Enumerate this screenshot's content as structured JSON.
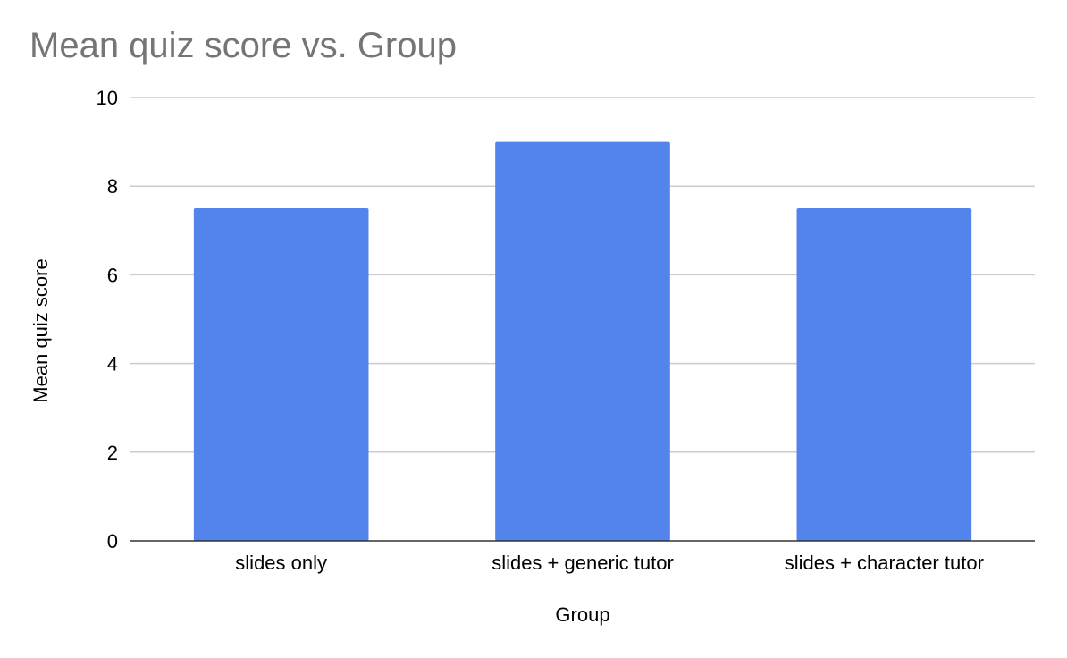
{
  "chart_data": {
    "type": "bar",
    "title": "Mean quiz score vs. Group",
    "xlabel": "Group",
    "ylabel": "Mean quiz score",
    "categories": [
      "slides only",
      "slides + generic tutor",
      "slides + character tutor"
    ],
    "values": [
      7.5,
      9,
      7.5
    ],
    "ylim": [
      0,
      10
    ],
    "yticks": [
      "0",
      "2",
      "4",
      "6",
      "8",
      "10"
    ],
    "grid": true,
    "legend": "none"
  },
  "colors": {
    "bar": "#5284EC",
    "grid": "#cccccc",
    "axis": "#333333",
    "title": "#757575"
  }
}
